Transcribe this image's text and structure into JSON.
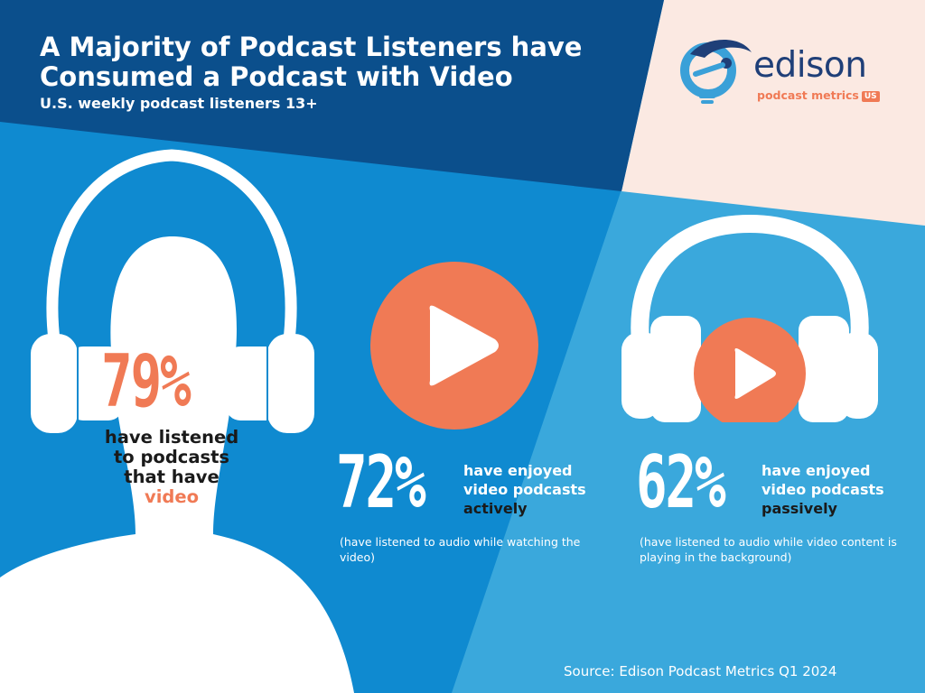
{
  "header": {
    "title_line1": "A Majority of Podcast Listeners have",
    "title_line2": "Consumed a Podcast with Video",
    "subtitle": "U.S. weekly podcast listeners 13+"
  },
  "logo": {
    "wordmark": "edison",
    "subline": "podcast metrics",
    "badge": "US"
  },
  "stats": [
    {
      "value": "79%",
      "line1": "have listened",
      "line2": "to podcasts",
      "line3": "that have",
      "accent_word": "video"
    },
    {
      "value": "72%",
      "line1": "have enjoyed",
      "line2": "video podcasts",
      "emphasis": "actively",
      "note": "(have listened to audio while watching the video)"
    },
    {
      "value": "62%",
      "line1": "have enjoyed",
      "line2": "video podcasts",
      "emphasis": "passively",
      "note": "(have listened to audio while video content is playing in the background)"
    }
  ],
  "source": "Source: Edison Podcast Metrics Q1 2024",
  "colors": {
    "dark_navy": "#0b4f8c",
    "mid_blue": "#0f8ad0",
    "light_blue": "#3aa8dc",
    "peach": "#fbe9e2",
    "coral": "#f07a55",
    "logo_navy": "#1f3f78",
    "white": "#ffffff"
  },
  "icons": [
    "listener-silhouette-icon",
    "play-button-icon",
    "headphones-play-icon"
  ]
}
